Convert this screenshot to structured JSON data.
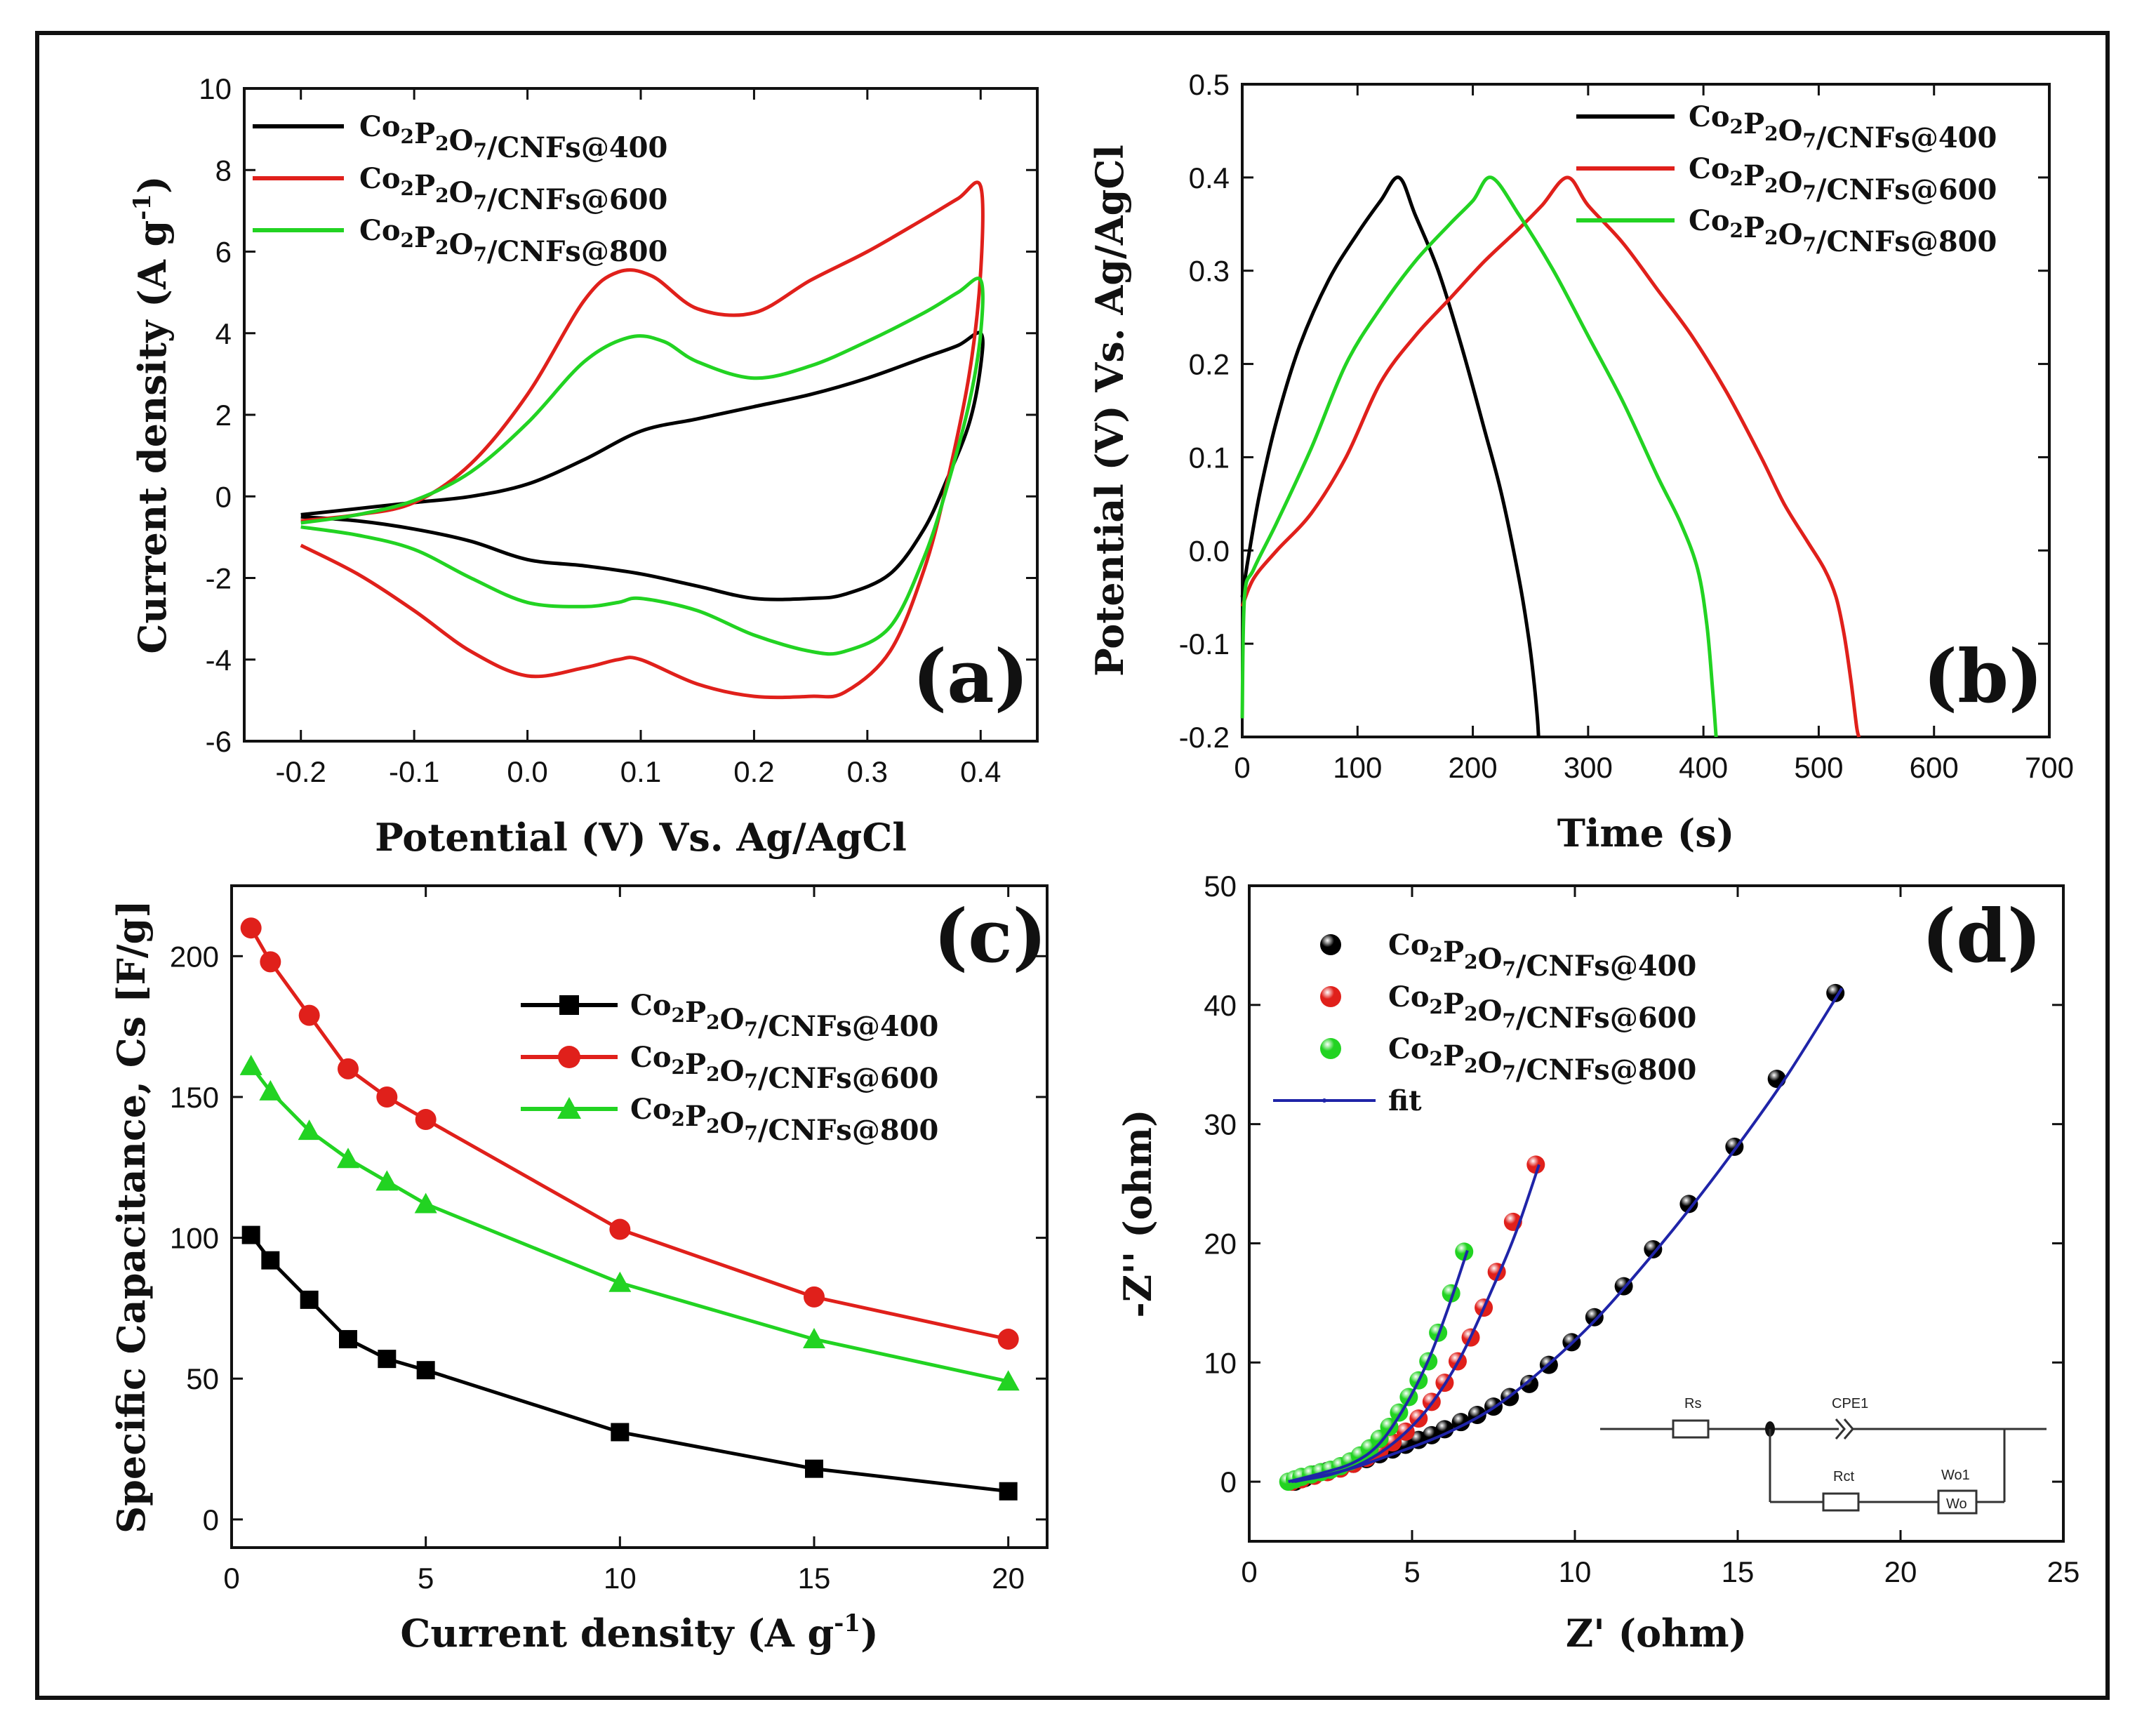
{
  "colors": {
    "s400": "#000000",
    "s600": "#e0201b",
    "s800": "#22d322",
    "fit": "#1f24a8",
    "frame": "#111111"
  },
  "series_names": [
    "Co2P2O7/CNFs@400",
    "Co2P2O7/CNFs@600",
    "Co2P2O7/CNFs@800"
  ],
  "chart_data": [
    {
      "id": "a",
      "type": "line",
      "panel_label": "(a)",
      "xlabel": "Potential (V) Vs. Ag/AgCl",
      "ylabel": "Current density (A g",
      "ylabel_sup": "-1",
      "ylabel_end": ")",
      "xlim": [
        -0.25,
        0.45
      ],
      "ylim": [
        -6,
        10
      ],
      "xticks": [
        -0.2,
        -0.1,
        0.0,
        0.1,
        0.2,
        0.3,
        0.4
      ],
      "xtick_labels": [
        "-0.2",
        "-0.1",
        "0.0",
        "0.1",
        "0.2",
        "0.3",
        "0.4"
      ],
      "yticks": [
        -6,
        -4,
        -2,
        0,
        2,
        4,
        6,
        8,
        10
      ],
      "ytick_labels": [
        "-6",
        "-4",
        "-2",
        "0",
        "2",
        "4",
        "6",
        "8",
        "10"
      ],
      "legend": {
        "placement": "top-left",
        "style": "line"
      },
      "series": [
        {
          "name": "Co2P2O7/CNFs@400",
          "color": "#000000",
          "x": [
            -0.2,
            -0.15,
            -0.1,
            -0.05,
            0.0,
            0.05,
            0.1,
            0.15,
            0.2,
            0.25,
            0.3,
            0.35,
            0.38,
            0.4,
            0.4,
            0.39,
            0.37,
            0.35,
            0.32,
            0.28,
            0.25,
            0.2,
            0.15,
            0.1,
            0.05,
            0.0,
            -0.05,
            -0.1,
            -0.15,
            -0.2
          ],
          "y": [
            -0.45,
            -0.3,
            -0.15,
            0.0,
            0.3,
            0.9,
            1.6,
            1.9,
            2.2,
            2.5,
            2.9,
            3.4,
            3.7,
            4.0,
            3.2,
            1.8,
            0.4,
            -0.8,
            -1.9,
            -2.4,
            -2.5,
            -2.5,
            -2.2,
            -1.9,
            -1.7,
            -1.55,
            -1.1,
            -0.8,
            -0.6,
            -0.5
          ]
        },
        {
          "name": "Co2P2O7/CNFs@600",
          "color": "#e0201b",
          "x": [
            -0.2,
            -0.15,
            -0.1,
            -0.05,
            0.0,
            0.05,
            0.08,
            0.11,
            0.15,
            0.2,
            0.25,
            0.3,
            0.35,
            0.38,
            0.4,
            0.4,
            0.39,
            0.37,
            0.35,
            0.32,
            0.28,
            0.25,
            0.2,
            0.15,
            0.1,
            0.08,
            0.05,
            0.0,
            -0.05,
            -0.1,
            -0.15,
            -0.2
          ],
          "y": [
            -0.6,
            -0.45,
            -0.15,
            0.8,
            2.5,
            4.8,
            5.5,
            5.4,
            4.6,
            4.5,
            5.3,
            6.0,
            6.8,
            7.3,
            7.6,
            5.5,
            3.0,
            0.3,
            -1.8,
            -3.8,
            -4.8,
            -4.9,
            -4.9,
            -4.6,
            -4.0,
            -4.0,
            -4.2,
            -4.4,
            -3.8,
            -2.8,
            -1.9,
            -1.2
          ]
        },
        {
          "name": "Co2P2O7/CNFs@800",
          "color": "#22d322",
          "x": [
            -0.2,
            -0.15,
            -0.1,
            -0.05,
            0.0,
            0.05,
            0.09,
            0.12,
            0.15,
            0.2,
            0.25,
            0.3,
            0.35,
            0.38,
            0.4,
            0.4,
            0.39,
            0.37,
            0.35,
            0.32,
            0.28,
            0.25,
            0.2,
            0.15,
            0.1,
            0.08,
            0.05,
            0.0,
            -0.05,
            -0.1,
            -0.15,
            -0.2
          ],
          "y": [
            -0.65,
            -0.45,
            -0.1,
            0.6,
            1.8,
            3.3,
            3.9,
            3.8,
            3.3,
            2.9,
            3.2,
            3.8,
            4.5,
            5.0,
            5.3,
            4.0,
            2.3,
            0.2,
            -1.5,
            -3.2,
            -3.8,
            -3.8,
            -3.4,
            -2.8,
            -2.5,
            -2.6,
            -2.7,
            -2.6,
            -2.0,
            -1.3,
            -0.95,
            -0.75
          ]
        }
      ]
    },
    {
      "id": "b",
      "type": "line",
      "panel_label": "(b)",
      "xlabel": "Time (s)",
      "ylabel": "Potential (V) Vs. Ag/AgCl",
      "xlim": [
        0,
        700
      ],
      "ylim": [
        -0.2,
        0.5
      ],
      "xticks": [
        0,
        100,
        200,
        300,
        400,
        500,
        600,
        700
      ],
      "xtick_labels": [
        "0",
        "100",
        "200",
        "300",
        "400",
        "500",
        "600",
        "700"
      ],
      "yticks": [
        -0.2,
        -0.1,
        0.0,
        0.1,
        0.2,
        0.3,
        0.4,
        0.5
      ],
      "ytick_labels": [
        "-0.2",
        "-0.1",
        "0.0",
        "0.1",
        "0.2",
        "0.3",
        "0.4",
        "0.5"
      ],
      "legend": {
        "placement": "top-right",
        "style": "line"
      },
      "series": [
        {
          "name": "Co2P2O7/CNFs@400",
          "color": "#000000",
          "x": [
            0,
            5,
            15,
            30,
            50,
            75,
            100,
            120,
            136,
            150,
            170,
            190,
            210,
            225,
            240,
            248,
            253,
            256,
            257
          ],
          "y": [
            -0.05,
            -0.01,
            0.06,
            0.14,
            0.22,
            0.29,
            0.34,
            0.375,
            0.4,
            0.36,
            0.3,
            0.22,
            0.13,
            0.06,
            -0.03,
            -0.09,
            -0.14,
            -0.18,
            -0.2
          ]
        },
        {
          "name": "Co2P2O7/CNFs@600",
          "color": "#e0201b",
          "x": [
            0,
            10,
            30,
            60,
            90,
            120,
            150,
            180,
            210,
            240,
            260,
            282,
            300,
            330,
            360,
            390,
            420,
            450,
            470,
            490,
            505,
            515,
            522,
            528,
            533,
            535
          ],
          "y": [
            -0.06,
            -0.03,
            0.0,
            0.04,
            0.1,
            0.18,
            0.23,
            0.27,
            0.31,
            0.345,
            0.37,
            0.4,
            0.37,
            0.33,
            0.28,
            0.23,
            0.17,
            0.1,
            0.05,
            0.01,
            -0.02,
            -0.05,
            -0.09,
            -0.14,
            -0.19,
            -0.2
          ]
        },
        {
          "name": "Co2P2O7/CNFs@800",
          "color": "#22d322",
          "x": [
            0,
            2,
            10,
            30,
            60,
            90,
            120,
            150,
            180,
            200,
            216,
            240,
            270,
            300,
            330,
            360,
            380,
            395,
            403,
            408,
            411
          ],
          "y": [
            -0.18,
            -0.05,
            -0.02,
            0.03,
            0.11,
            0.2,
            0.26,
            0.31,
            0.35,
            0.375,
            0.4,
            0.36,
            0.3,
            0.23,
            0.16,
            0.08,
            0.03,
            -0.02,
            -0.08,
            -0.15,
            -0.2
          ]
        }
      ]
    },
    {
      "id": "c",
      "type": "line",
      "panel_label": "(c)",
      "xlabel": "Current density (A g",
      "xlabel_sup": "-1",
      "xlabel_end": ")",
      "ylabel": "Specific Capacitance, Cs [F/g]",
      "xlim": [
        0,
        21
      ],
      "ylim": [
        -10,
        225
      ],
      "xticks": [
        0,
        5,
        10,
        15,
        20
      ],
      "xtick_labels": [
        "0",
        "5",
        "10",
        "15",
        "20"
      ],
      "yticks": [
        0,
        50,
        100,
        150,
        200
      ],
      "ytick_labels": [
        "0",
        "50",
        "100",
        "150",
        "200"
      ],
      "legend": {
        "placement": "center-right",
        "style": "line-marker"
      },
      "series": [
        {
          "name": "Co2P2O7/CNFs@400",
          "color": "#000000",
          "marker": "square",
          "x": [
            0.5,
            1,
            2,
            3,
            4,
            5,
            10,
            15,
            20
          ],
          "y": [
            101,
            92,
            78,
            64,
            57,
            53,
            31,
            18,
            10
          ]
        },
        {
          "name": "Co2P2O7/CNFs@600",
          "color": "#e0201b",
          "marker": "circle",
          "x": [
            0.5,
            1,
            2,
            3,
            4,
            5,
            10,
            15,
            20
          ],
          "y": [
            210,
            198,
            179,
            160,
            150,
            142,
            103,
            79,
            64
          ]
        },
        {
          "name": "Co2P2O7/CNFs@800",
          "color": "#22d322",
          "marker": "triangle",
          "x": [
            0.5,
            1,
            2,
            3,
            4,
            5,
            10,
            15,
            20
          ],
          "y": [
            161,
            152,
            138,
            128,
            120,
            112,
            84,
            64,
            49
          ]
        }
      ]
    },
    {
      "id": "d",
      "type": "scatter",
      "panel_label": "(d)",
      "xlabel": "Z' (ohm)",
      "ylabel": "-Z'' (ohm)",
      "xlim": [
        0,
        25
      ],
      "ylim": [
        -5,
        50
      ],
      "xticks": [
        0,
        5,
        10,
        15,
        20,
        25
      ],
      "xtick_labels": [
        "0",
        "5",
        "10",
        "15",
        "20",
        "25"
      ],
      "yticks": [
        0,
        10,
        20,
        30,
        40,
        50
      ],
      "ytick_labels": [
        "0",
        "10",
        "20",
        "30",
        "40",
        "50"
      ],
      "legend": {
        "placement": "top-left",
        "style": "sphere",
        "fit_label": "fit"
      },
      "series": [
        {
          "name": "Co2P2O7/CNFs@400",
          "color": "#000000",
          "x": [
            1.4,
            1.7,
            2.0,
            2.4,
            2.8,
            3.2,
            3.6,
            4.0,
            4.4,
            4.8,
            5.2,
            5.6,
            6.0,
            6.5,
            7.0,
            7.5,
            8.0,
            8.6,
            9.2,
            9.9,
            10.6,
            11.5,
            12.4,
            13.5,
            14.9,
            16.2,
            18.0
          ],
          "y": [
            0.0,
            0.3,
            0.6,
            0.9,
            1.2,
            1.5,
            1.9,
            2.3,
            2.7,
            3.1,
            3.5,
            3.9,
            4.4,
            5.0,
            5.6,
            6.3,
            7.1,
            8.2,
            9.8,
            11.7,
            13.8,
            16.4,
            19.5,
            23.3,
            28.1,
            33.8,
            41.0
          ]
        },
        {
          "name": "Co2P2O7/CNFs@600",
          "color": "#e0201b",
          "x": [
            1.3,
            1.6,
            2.0,
            2.4,
            2.8,
            3.2,
            3.6,
            4.0,
            4.4,
            4.8,
            5.2,
            5.6,
            6.0,
            6.4,
            6.8,
            7.2,
            7.6,
            8.1,
            8.8
          ],
          "y": [
            0.0,
            0.2,
            0.5,
            0.8,
            1.1,
            1.5,
            2.0,
            2.6,
            3.3,
            4.2,
            5.3,
            6.7,
            8.3,
            10.1,
            12.1,
            14.6,
            17.6,
            21.8,
            26.6
          ]
        },
        {
          "name": "Co2P2O7/CNFs@800",
          "color": "#22d322",
          "x": [
            1.2,
            1.4,
            1.6,
            1.9,
            2.2,
            2.5,
            2.8,
            3.1,
            3.4,
            3.7,
            4.0,
            4.3,
            4.6,
            4.9,
            5.2,
            5.5,
            5.8,
            6.2,
            6.6
          ],
          "y": [
            0.0,
            0.2,
            0.4,
            0.6,
            0.8,
            1.0,
            1.3,
            1.7,
            2.2,
            2.8,
            3.6,
            4.6,
            5.8,
            7.1,
            8.5,
            10.1,
            12.5,
            15.8,
            19.3
          ]
        }
      ],
      "fits": [
        {
          "for": "Co2P2O7/CNFs@400",
          "x": [
            1.4,
            3.0,
            4.5,
            6.0,
            7.5,
            9.0,
            10.5,
            12.0,
            13.5,
            15.0,
            16.5,
            18.2
          ],
          "y": [
            0.0,
            1.0,
            2.4,
            4.0,
            6.2,
            9.4,
            13.2,
            17.8,
            22.8,
            28.2,
            34.0,
            41.4
          ]
        },
        {
          "for": "Co2P2O7/CNFs@600",
          "x": [
            1.3,
            2.5,
            3.5,
            4.5,
            5.5,
            6.5,
            7.5,
            8.2,
            8.9
          ],
          "y": [
            0.0,
            0.6,
            1.6,
            3.4,
            6.2,
            10.5,
            16.4,
            21.0,
            26.6
          ]
        },
        {
          "for": "Co2P2O7/CNFs@800",
          "x": [
            1.2,
            2.2,
            3.2,
            4.0,
            4.8,
            5.5,
            6.1,
            6.7
          ],
          "y": [
            0.0,
            0.7,
            1.6,
            3.2,
            6.4,
            10.2,
            14.5,
            19.4
          ]
        }
      ],
      "circuit": {
        "labels": [
          "Rs",
          "CPE1",
          "Rct",
          "Wo1",
          "Wo"
        ]
      }
    }
  ]
}
